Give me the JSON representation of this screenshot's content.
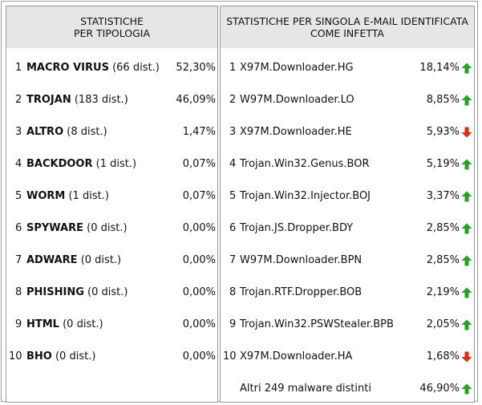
{
  "left": {
    "header": [
      "STATISTICHE",
      "PER TIPOLOGIA"
    ],
    "rows": [
      {
        "index": "1",
        "type": "MACRO VIRUS",
        "detail": "(66 dist.)",
        "percent": "52,30%"
      },
      {
        "index": "2",
        "type": "TROJAN",
        "detail": "(183 dist.)",
        "percent": "46,09%"
      },
      {
        "index": "3",
        "type": "ALTRO",
        "detail": "(8 dist.)",
        "percent": "1,47%"
      },
      {
        "index": "4",
        "type": "BACKDOOR",
        "detail": "(1 dist.)",
        "percent": "0,07%"
      },
      {
        "index": "5",
        "type": "WORM",
        "detail": "(1 dist.)",
        "percent": "0,07%"
      },
      {
        "index": "6",
        "type": "SPYWARE",
        "detail": "(0 dist.)",
        "percent": "0,00%"
      },
      {
        "index": "7",
        "type": "ADWARE",
        "detail": "(0 dist.)",
        "percent": "0,00%"
      },
      {
        "index": "8",
        "type": "PHISHING",
        "detail": "(0 dist.)",
        "percent": "0,00%"
      },
      {
        "index": "9",
        "type": "HTML",
        "detail": "(0 dist.)",
        "percent": "0,00%"
      },
      {
        "index": "10",
        "type": "BHO",
        "detail": "(0 dist.)",
        "percent": "0,00%"
      }
    ]
  },
  "right": {
    "header": [
      "STATISTICHE PER SINGOLA E-MAIL IDENTIFICATA",
      "COME INFETTA"
    ],
    "rows": [
      {
        "index": "1",
        "name": "X97M.Downloader.HG",
        "percent": "18,14%",
        "trend": "up"
      },
      {
        "index": "2",
        "name": "W97M.Downloader.LO",
        "percent": "8,85%",
        "trend": "up"
      },
      {
        "index": "3",
        "name": "X97M.Downloader.HE",
        "percent": "5,93%",
        "trend": "down"
      },
      {
        "index": "4",
        "name": "Trojan.Win32.Genus.BOR",
        "percent": "5,19%",
        "trend": "up"
      },
      {
        "index": "5",
        "name": "Trojan.Win32.Injector.BOJ",
        "percent": "3,37%",
        "trend": "up"
      },
      {
        "index": "6",
        "name": "Trojan.JS.Dropper.BDY",
        "percent": "2,85%",
        "trend": "up"
      },
      {
        "index": "7",
        "name": "W97M.Downloader.BPN",
        "percent": "2,85%",
        "trend": "up"
      },
      {
        "index": "8",
        "name": "Trojan.RTF.Dropper.BOB",
        "percent": "2,19%",
        "trend": "up"
      },
      {
        "index": "9",
        "name": "Trojan.Win32.PSWStealer.BPB",
        "percent": "2,05%",
        "trend": "up"
      },
      {
        "index": "10",
        "name": "X97M.Downloader.HA",
        "percent": "1,68%",
        "trend": "down"
      }
    ],
    "others": {
      "name": "Altri 249 malware distinti",
      "percent": "46,90%",
      "trend": "up"
    }
  },
  "colors": {
    "up": "#22a322",
    "down": "#e02b12",
    "header_bg": "#e6e6e6",
    "border": "#9a9a9a"
  }
}
